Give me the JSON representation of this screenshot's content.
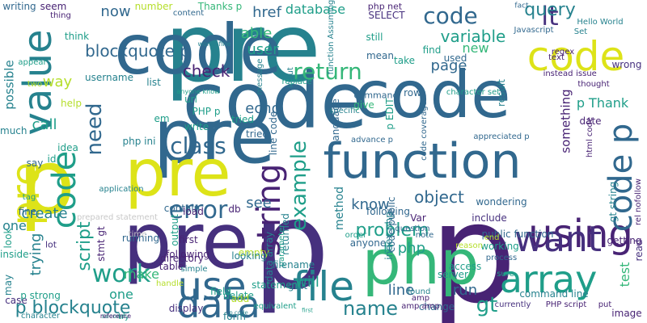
{
  "palette": {
    "dark-purple": "#46307e",
    "purple": "#482374",
    "blue": "#31688e",
    "teal-blue": "#26828e",
    "teal": "#1f9e89",
    "green": "#35b779",
    "light-green": "#6ece58",
    "yellow-green": "#b5de2b",
    "yellow": "#dde318",
    "light-gray": "#c8c8c8"
  },
  "words": [
    "pre",
    "code",
    "pre",
    "p",
    "p",
    "code",
    "code",
    "pre",
    "pre",
    "pre",
    "php",
    "p",
    "function",
    "code",
    "file",
    "array",
    "using",
    "want",
    "use",
    "data",
    "string",
    "code p",
    "code",
    "value",
    "lt",
    "code",
    "work",
    "class",
    "return",
    "error",
    "example",
    "blockquote p",
    "name",
    "gt",
    "need",
    "check",
    "query",
    "p blockquote",
    "script",
    "variable",
    "now",
    "user",
    "able",
    "href",
    "echo",
    "way",
    "call",
    "object",
    "problem",
    "lt php",
    "know",
    "run",
    "line",
    "method",
    "create",
    "see",
    "trying",
    "will",
    "make",
    "page",
    "possible",
    "new",
    "database",
    "one",
    "test",
    "one",
    "p Thank",
    "something",
    "gt string",
    "date",
    "SELECT",
    "php net",
    "Thanks p",
    "writing",
    "seem",
    "number",
    "content",
    "fact",
    "issue",
    "wrong",
    "think",
    "help",
    "idea",
    "id",
    "tag",
    "em",
    "PHP p",
    "url",
    "write",
    "tried",
    "message",
    "replace",
    "instead",
    "thought",
    "regex",
    "text",
    "Javascript",
    "Set",
    "Hello World",
    "still",
    "mean",
    "find",
    "used",
    "take",
    "row",
    "command",
    "p EDIT",
    "specific",
    "language",
    "give",
    "result",
    "code coverage",
    "advance p",
    "appreciated p",
    "include",
    "wondering",
    "public function",
    "working",
    "access",
    "server",
    "command line",
    "currently",
    "PHP script",
    "image",
    "put",
    "read",
    "getting",
    "rel nofollow",
    "html code",
    "order",
    "anyone",
    "following",
    "note",
    "question",
    "code public",
    "index php",
    "end",
    "process",
    "sure",
    "found",
    "change",
    "amp",
    "amp amp",
    "reason",
    "Var",
    "tried",
    "returned",
    "parameter",
    "filename",
    "statement",
    "field",
    "delete",
    "gt lt",
    "empty",
    "output",
    "first",
    "following",
    "table",
    "directory",
    "stmt gt",
    "looking",
    "contain",
    "load",
    "db",
    "data array",
    "line code",
    "simple",
    "handle",
    "display",
    "running",
    "inside",
    "lot",
    "case",
    "character",
    "p strong",
    "much",
    "say",
    "fine",
    "two",
    "appear",
    "application",
    "prepared statement",
    "may",
    "look",
    "list",
    "php ini",
    "username",
    "input",
    "thing",
    "time",
    "add",
    "equivalent",
    "form",
    "first",
    "try",
    "character set",
    "second",
    "anyone know",
    "p code",
    "reference",
    "works fine",
    "function Assuming"
  ]
}
